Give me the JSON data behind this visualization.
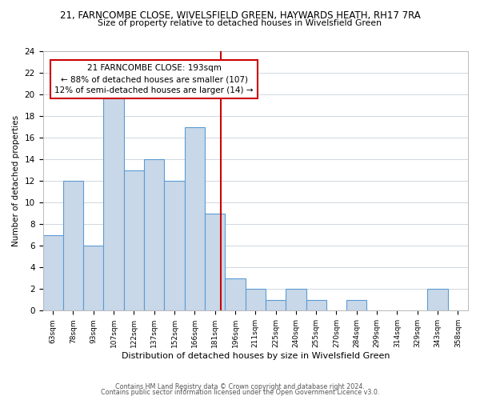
{
  "title1": "21, FARNCOMBE CLOSE, WIVELSFIELD GREEN, HAYWARDS HEATH, RH17 7RA",
  "title2": "Size of property relative to detached houses in Wivelsfield Green",
  "xlabel": "Distribution of detached houses by size in Wivelsfield Green",
  "ylabel": "Number of detached properties",
  "bin_labels": [
    "63sqm",
    "78sqm",
    "93sqm",
    "107sqm",
    "122sqm",
    "137sqm",
    "152sqm",
    "166sqm",
    "181sqm",
    "196sqm",
    "211sqm",
    "225sqm",
    "240sqm",
    "255sqm",
    "270sqm",
    "284sqm",
    "299sqm",
    "314sqm",
    "329sqm",
    "343sqm",
    "358sqm"
  ],
  "bar_heights": [
    7,
    12,
    6,
    20,
    13,
    14,
    12,
    17,
    9,
    3,
    2,
    1,
    2,
    1,
    0,
    1,
    0,
    0,
    0,
    2,
    0
  ],
  "bar_color": "#c8d8e8",
  "bar_edge_color": "#5b9bd5",
  "highlight_line_color": "#cc0000",
  "annotation_title": "21 FARNCOMBE CLOSE: 193sqm",
  "annotation_line1": "← 88% of detached houses are smaller (107)",
  "annotation_line2": "12% of semi-detached houses are larger (14) →",
  "annotation_box_edge": "#cc0000",
  "ylim": [
    0,
    24
  ],
  "yticks": [
    0,
    2,
    4,
    6,
    8,
    10,
    12,
    14,
    16,
    18,
    20,
    22,
    24
  ],
  "footer1": "Contains HM Land Registry data © Crown copyright and database right 2024.",
  "footer2": "Contains public sector information licensed under the Open Government Licence v3.0.",
  "bg_color": "#ffffff",
  "grid_color": "#d0d8e0"
}
